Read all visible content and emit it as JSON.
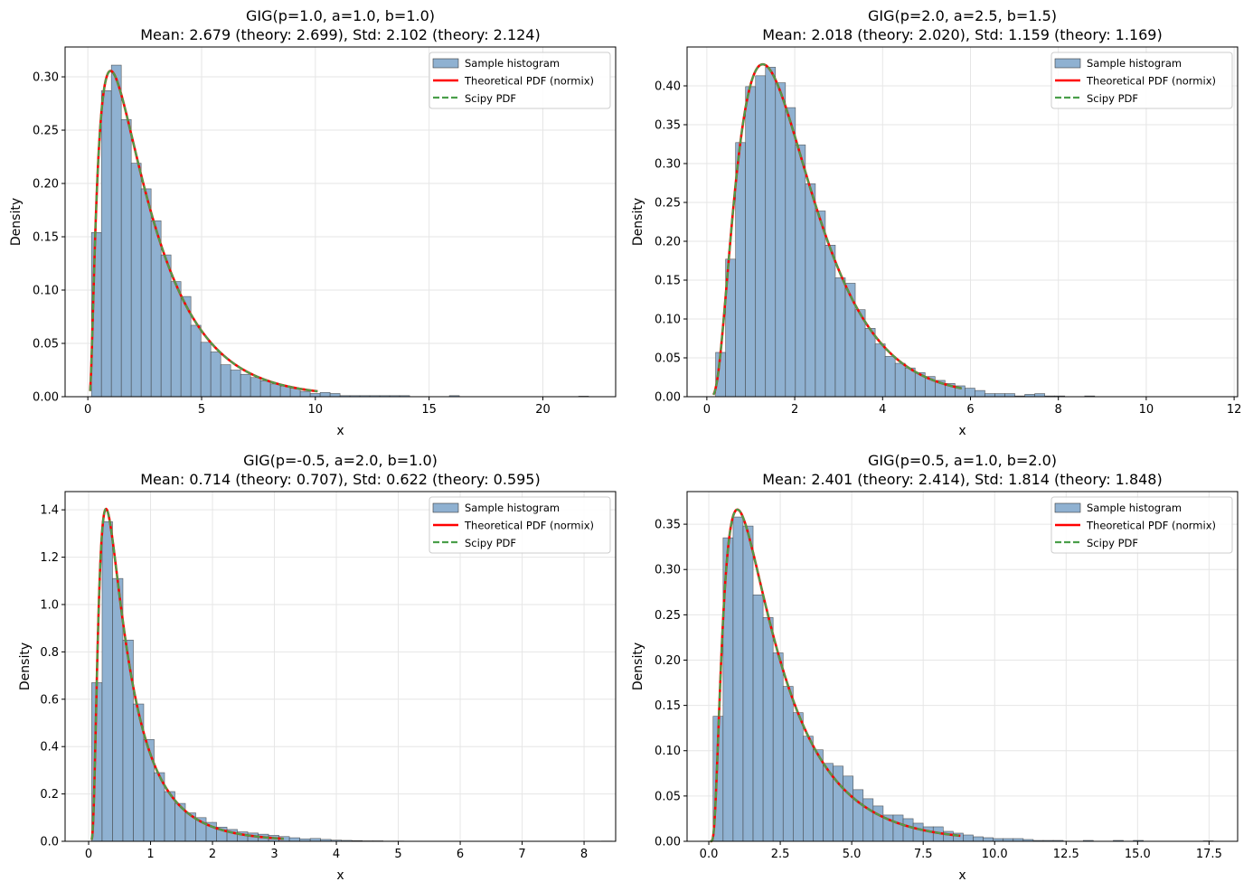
{
  "chart_data": [
    {
      "type": "bar",
      "title": "GIG(p=1.0, a=1.0, b=1.0)",
      "subtitle": "Mean: 2.679 (theory: 2.699), Std: 2.102 (theory: 2.124)",
      "xlabel": "x",
      "ylabel": "Density",
      "params": {
        "p": 1.0,
        "a": 1.0,
        "b": 1.0
      },
      "xlim": [
        -1.0,
        23.2
      ],
      "ylim": [
        0,
        0.328
      ],
      "xticks": [
        0,
        5,
        10,
        15,
        20
      ],
      "xtick_labels": [
        "0",
        "5",
        "10",
        "15",
        "20"
      ],
      "yticks": [
        0,
        0.05,
        0.1,
        0.15,
        0.2,
        0.25,
        0.3
      ],
      "ytick_labels": [
        "0.00",
        "0.05",
        "0.10",
        "0.15",
        "0.20",
        "0.25",
        "0.30"
      ],
      "hist_bin_start": 0.16,
      "hist_bin_width": 0.437,
      "hist_values": [
        0.154,
        0.287,
        0.311,
        0.26,
        0.219,
        0.195,
        0.165,
        0.133,
        0.108,
        0.094,
        0.067,
        0.051,
        0.042,
        0.03,
        0.025,
        0.021,
        0.018,
        0.015,
        0.012,
        0.01,
        0.008,
        0.005,
        0.003,
        0.004,
        0.003,
        0.001,
        0.001,
        0.001,
        0.001,
        0.001,
        0.001,
        0.001,
        0,
        0,
        0,
        0,
        0.001,
        0,
        0,
        0,
        0,
        0,
        0,
        0,
        0,
        0,
        0,
        0,
        0,
        0.0005
      ],
      "pdf_x_range": [
        0.1,
        10.1
      ],
      "grid": true,
      "legend_placement": "top-right"
    },
    {
      "type": "bar",
      "title": "GIG(p=2.0, a=2.5, b=1.5)",
      "subtitle": "Mean: 2.018 (theory: 2.020), Std: 1.159 (theory: 1.169)",
      "xlabel": "x",
      "ylabel": "Density",
      "params": {
        "p": 2.0,
        "a": 2.5,
        "b": 1.5
      },
      "xlim": [
        -0.45,
        12.08
      ],
      "ylim": [
        0,
        0.45
      ],
      "xticks": [
        0,
        2,
        4,
        6,
        8,
        10,
        12
      ],
      "xtick_labels": [
        "0",
        "2",
        "4",
        "6",
        "8",
        "10",
        "12"
      ],
      "yticks": [
        0,
        0.05,
        0.1,
        0.15,
        0.2,
        0.25,
        0.3,
        0.35,
        0.4
      ],
      "ytick_labels": [
        "0.00",
        "0.05",
        "0.10",
        "0.15",
        "0.20",
        "0.25",
        "0.30",
        "0.35",
        "0.40"
      ],
      "hist_bin_start": 0.2,
      "hist_bin_width": 0.227,
      "hist_values": [
        0.057,
        0.177,
        0.327,
        0.399,
        0.413,
        0.424,
        0.404,
        0.372,
        0.324,
        0.274,
        0.239,
        0.195,
        0.153,
        0.146,
        0.112,
        0.088,
        0.068,
        0.052,
        0.043,
        0.037,
        0.031,
        0.026,
        0.021,
        0.017,
        0.014,
        0.011,
        0.008,
        0.004,
        0.004,
        0.004,
        0.001,
        0.003,
        0.004,
        0.001,
        0.001,
        0,
        0,
        0.001,
        0,
        0,
        0,
        0,
        0,
        0,
        0,
        0,
        0,
        0,
        0,
        0
      ],
      "pdf_x_range": [
        0.15,
        5.8
      ],
      "grid": true,
      "legend_placement": "top-right"
    },
    {
      "type": "bar",
      "title": "GIG(p=-0.5, a=2.0, b=1.0)",
      "subtitle": "Mean: 0.714 (theory: 0.707), Std: 0.622 (theory: 0.595)",
      "xlabel": "x",
      "ylabel": "Density",
      "params": {
        "p": -0.5,
        "a": 2.0,
        "b": 1.0
      },
      "xlim": [
        -0.38,
        8.51
      ],
      "ylim": [
        0,
        1.477
      ],
      "xticks": [
        0,
        1,
        2,
        3,
        4,
        5,
        6,
        7,
        8
      ],
      "xtick_labels": [
        "0",
        "1",
        "2",
        "3",
        "4",
        "5",
        "6",
        "7",
        "8"
      ],
      "yticks": [
        0,
        0.2,
        0.4,
        0.6,
        0.8,
        1.0,
        1.2,
        1.4
      ],
      "ytick_labels": [
        "0.0",
        "0.2",
        "0.4",
        "0.6",
        "0.8",
        "1.0",
        "1.2",
        "1.4"
      ],
      "hist_bin_start": 0.05,
      "hist_bin_width": 0.168,
      "hist_values": [
        0.67,
        1.35,
        1.11,
        0.85,
        0.58,
        0.43,
        0.29,
        0.21,
        0.16,
        0.12,
        0.1,
        0.08,
        0.06,
        0.05,
        0.04,
        0.035,
        0.03,
        0.025,
        0.02,
        0.015,
        0.01,
        0.012,
        0.008,
        0.005,
        0.004,
        0.003,
        0.002,
        0.002,
        0.001,
        0.001,
        0,
        0,
        0,
        0,
        0,
        0,
        0,
        0,
        0,
        0,
        0,
        0,
        0,
        0,
        0,
        0,
        0,
        0,
        0,
        0.001
      ],
      "pdf_x_range": [
        0.05,
        3.15
      ],
      "grid": true,
      "legend_placement": "top-right"
    },
    {
      "type": "bar",
      "title": "GIG(p=0.5, a=1.0, b=2.0)",
      "subtitle": "Mean: 2.401 (theory: 2.414), Std: 1.814 (theory: 1.848)",
      "xlabel": "x",
      "ylabel": "Density",
      "params": {
        "p": 0.5,
        "a": 1.0,
        "b": 2.0
      },
      "xlim": [
        -0.76,
        18.5
      ],
      "ylim": [
        0,
        0.386
      ],
      "xticks": [
        0,
        2.5,
        5,
        7.5,
        10,
        12.5,
        15,
        17.5
      ],
      "xtick_labels": [
        "0.0",
        "2.5",
        "5.0",
        "7.5",
        "10.0",
        "12.5",
        "15.0",
        "17.5"
      ],
      "yticks": [
        0,
        0.05,
        0.1,
        0.15,
        0.2,
        0.25,
        0.3,
        0.35
      ],
      "ytick_labels": [
        "0.00",
        "0.05",
        "0.10",
        "0.15",
        "0.20",
        "0.25",
        "0.30",
        "0.35"
      ],
      "hist_bin_start": 0.15,
      "hist_bin_width": 0.35,
      "hist_values": [
        0.138,
        0.335,
        0.358,
        0.348,
        0.272,
        0.247,
        0.208,
        0.171,
        0.142,
        0.116,
        0.101,
        0.086,
        0.083,
        0.072,
        0.057,
        0.047,
        0.039,
        0.029,
        0.029,
        0.025,
        0.02,
        0.016,
        0.016,
        0.011,
        0.009,
        0.007,
        0.005,
        0.004,
        0.003,
        0.003,
        0.003,
        0.002,
        0.001,
        0.001,
        0.001,
        0,
        0,
        0.001,
        0,
        0,
        0.001,
        0,
        0.001,
        0,
        0,
        0,
        0,
        0,
        0,
        0.0005
      ],
      "pdf_x_range": [
        0.05,
        8.8
      ],
      "grid": true,
      "legend_placement": "top-right"
    }
  ],
  "legend": {
    "entries": [
      "Sample histogram",
      "Theoretical PDF (normix)",
      "Scipy PDF"
    ]
  },
  "colors": {
    "histogram": "#8fb1d1",
    "theoretical_pdf": "#ff0000",
    "scipy_pdf": "#4a9f4a"
  }
}
